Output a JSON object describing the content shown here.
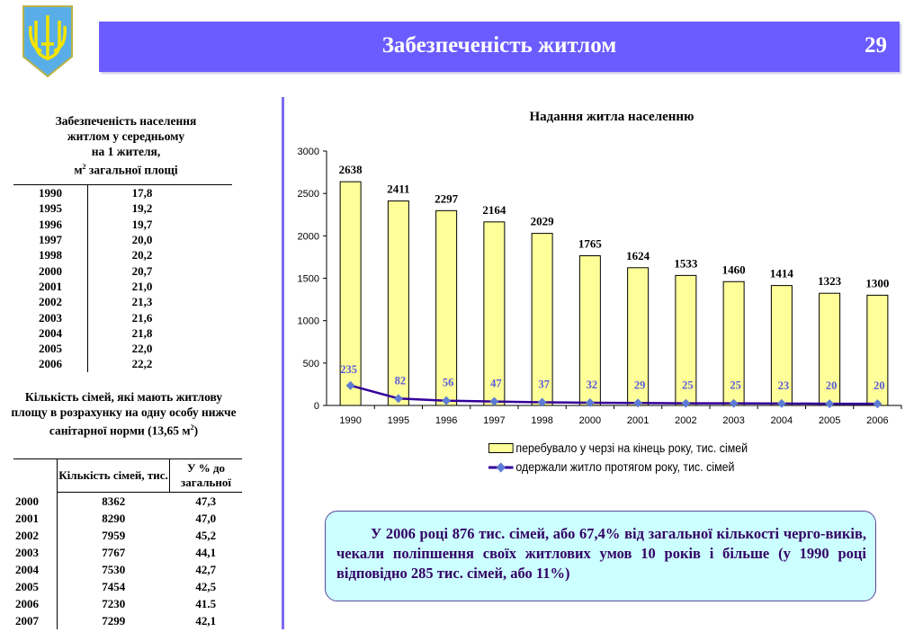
{
  "header": {
    "title": "Забезпеченість житлом",
    "page_number": "29"
  },
  "colors": {
    "header_bg": "#6a5cff",
    "bar_fill": "#ffff99",
    "line": "#330099",
    "marker": "#5b7bd5",
    "callout_bg": "#ccffff"
  },
  "table1": {
    "title_lines": [
      "Забезпеченість населення",
      "житлом у середньому",
      "на 1 жителя,"
    ],
    "title_unit": "м",
    "title_unit_sup": "2",
    "title_unit_rest": " загальної площі",
    "rows": [
      {
        "year": "1990",
        "value": "17,8"
      },
      {
        "year": "1995",
        "value": "19,2"
      },
      {
        "year": "1996",
        "value": "19,7"
      },
      {
        "year": "1997",
        "value": "20,0"
      },
      {
        "year": "1998",
        "value": "20,2"
      },
      {
        "year": "2000",
        "value": "20,7"
      },
      {
        "year": "2001",
        "value": "21,0"
      },
      {
        "year": "2002",
        "value": "21,3"
      },
      {
        "year": "2003",
        "value": "21,6"
      },
      {
        "year": "2004",
        "value": "21,8"
      },
      {
        "year": "2005",
        "value": "22,0"
      },
      {
        "year": "2006",
        "value": "22,2"
      }
    ]
  },
  "table2": {
    "title_main": "Кількість сімей, які мають житлову площу в розрахунку на одну особу нижче санітарної норми (13,65 м",
    "title_sup": "2",
    "title_end": ")",
    "headers": [
      "",
      "Кількість сімей, тис.",
      "У % до загальної"
    ],
    "rows": [
      {
        "year": "2000",
        "count": "8362",
        "pct": "47,3"
      },
      {
        "year": "2001",
        "count": "8290",
        "pct": "47,0"
      },
      {
        "year": "2002",
        "count": "7959",
        "pct": "45,2"
      },
      {
        "year": "2003",
        "count": "7767",
        "pct": "44,1"
      },
      {
        "year": "2004",
        "count": "7530",
        "pct": "42,7"
      },
      {
        "year": "2005",
        "count": "7454",
        "pct": "42,5"
      },
      {
        "year": "2006",
        "count": "7230",
        "pct": "41.5"
      },
      {
        "year": "2007",
        "count": "7299",
        "pct": "42,1"
      }
    ]
  },
  "chart_data": {
    "type": "bar",
    "title": "Надання житла населенню",
    "categories": [
      "1990",
      "1995",
      "1996",
      "1997",
      "1998",
      "2000",
      "2001",
      "2002",
      "2003",
      "2004",
      "2005",
      "2006"
    ],
    "series": [
      {
        "name": "перебувало у черзі на кінець року, тис. сімей",
        "kind": "bar",
        "values": [
          2638,
          2411,
          2297,
          2164,
          2029,
          1765,
          1624,
          1533,
          1460,
          1414,
          1323,
          1300
        ]
      },
      {
        "name": "одержали житло протягом року, тис. сімей",
        "kind": "line",
        "values": [
          235,
          82,
          56,
          47,
          37,
          32,
          29,
          25,
          25,
          23,
          20,
          20
        ]
      }
    ],
    "ylim": [
      0,
      3000
    ],
    "yticks": [
      "0",
      "500",
      "1000",
      "1500",
      "2000",
      "2500",
      "3000"
    ],
    "xlabel": "",
    "ylabel": "",
    "grid": false,
    "legend": "bottom"
  },
  "callout": {
    "text": "У 2006 році 876 тис. сімей, або 67,4% від загальної кількості черго-виків, чекали поліпшення своїх житлових умов 10 років і більше (у 1990 році відповідно 285  тис. сімей, або 11%)"
  }
}
